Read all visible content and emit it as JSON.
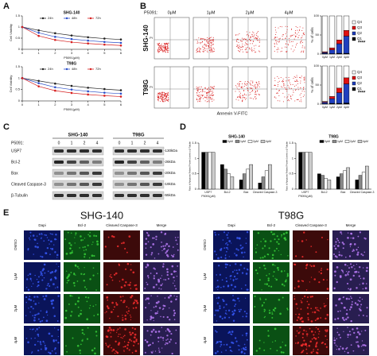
{
  "panel_labels": [
    "A",
    "B",
    "C",
    "D",
    "E"
  ],
  "chart_data": [
    {
      "type": "line",
      "title": "SHG-140",
      "x_label": "P5091(μM)",
      "y_label": "Cell Viability",
      "x": [
        0,
        1,
        2,
        3,
        4,
        5,
        6
      ],
      "xlim": [
        0,
        6
      ],
      "xticks": [
        0,
        1,
        2,
        3,
        4,
        5,
        6
      ],
      "ylim": [
        0,
        1.5
      ],
      "yticks": [
        0,
        0.5,
        1,
        1.5
      ],
      "series": [
        {
          "name": "24h",
          "color": "#222222",
          "values": [
            1,
            0.85,
            0.72,
            0.62,
            0.54,
            0.48,
            0.44
          ]
        },
        {
          "name": "48h",
          "color": "#2b4fc9",
          "values": [
            1,
            0.74,
            0.56,
            0.46,
            0.39,
            0.33,
            0.29
          ]
        },
        {
          "name": "72h",
          "color": "#d62020",
          "values": [
            1,
            0.6,
            0.42,
            0.32,
            0.26,
            0.21,
            0.17
          ]
        }
      ]
    },
    {
      "type": "line",
      "title": "T98G",
      "x_label": "P5091(μM)",
      "y_label": "Cell Viability",
      "x": [
        0,
        1,
        2,
        3,
        4,
        5,
        6
      ],
      "xlim": [
        0,
        6
      ],
      "xticks": [
        0,
        1,
        2,
        3,
        4,
        5,
        6
      ],
      "ylim": [
        0,
        1.5
      ],
      "yticks": [
        0,
        0.5,
        1,
        1.5
      ],
      "series": [
        {
          "name": "24h",
          "color": "#222222",
          "values": [
            1,
            0.88,
            0.76,
            0.66,
            0.58,
            0.52,
            0.47
          ]
        },
        {
          "name": "48h",
          "color": "#2b4fc9",
          "values": [
            1,
            0.78,
            0.6,
            0.5,
            0.42,
            0.36,
            0.32
          ]
        },
        {
          "name": "72h",
          "color": "#d62020",
          "values": [
            1,
            0.64,
            0.45,
            0.35,
            0.28,
            0.23,
            0.19
          ]
        }
      ]
    },
    {
      "type": "stacked_bar",
      "y_label": "% of cells",
      "annotation": "****",
      "categories": [
        "0μM",
        "1μM",
        "2μM",
        "4μM"
      ],
      "ylim": [
        0,
        100
      ],
      "yticks": [
        0,
        50,
        100
      ],
      "series": [
        {
          "name": "Q1",
          "color": "#000000",
          "values": [
            1,
            1,
            2,
            2
          ]
        },
        {
          "name": "Q2",
          "color": "#1f3fbf",
          "values": [
            3,
            10,
            25,
            45
          ]
        },
        {
          "name": "Q3",
          "color": "#e01010",
          "values": [
            2,
            5,
            10,
            15
          ]
        },
        {
          "name": "Q4",
          "color": "#ffffff",
          "values": [
            94,
            84,
            63,
            38
          ]
        }
      ]
    },
    {
      "type": "stacked_bar",
      "y_label": "% of cells",
      "annotation": "****",
      "categories": [
        "0μM",
        "1μM",
        "2μM",
        "4μM"
      ],
      "ylim": [
        0,
        100
      ],
      "yticks": [
        0,
        50,
        100
      ],
      "series": [
        {
          "name": "Q1",
          "color": "#000000",
          "values": [
            1,
            2,
            2,
            3
          ]
        },
        {
          "name": "Q2",
          "color": "#1f3fbf",
          "values": [
            4,
            12,
            28,
            50
          ]
        },
        {
          "name": "Q3",
          "color": "#e01010",
          "values": [
            2,
            6,
            12,
            16
          ]
        },
        {
          "name": "Q4",
          "color": "#ffffff",
          "values": [
            93,
            80,
            58,
            31
          ]
        }
      ]
    },
    {
      "type": "grouped_bar",
      "title": "SHG-140",
      "x_label": "P5091(μM)",
      "y_label": "Ratio of Apoptosis Related Protein Levels to β-Tubulin",
      "categories": [
        "USP7",
        "Bcl-2",
        "Bax",
        "Cleaved Caspase-3"
      ],
      "ylim": [
        0,
        1.5
      ],
      "yticks": [
        0,
        0.5,
        1,
        1.5
      ],
      "series": [
        {
          "name": "0μM",
          "color": "#000000",
          "values": [
            1.2,
            0.8,
            0.3,
            0.2
          ]
        },
        {
          "name": "1μM",
          "color": "#888888",
          "values": [
            1.2,
            0.65,
            0.5,
            0.4
          ]
        },
        {
          "name": "2μM",
          "color": "#ffffff",
          "values": [
            1.2,
            0.5,
            0.65,
            0.6
          ]
        },
        {
          "name": "4μM",
          "color": "#cccccc",
          "values": [
            1.2,
            0.4,
            0.8,
            0.8
          ]
        }
      ]
    },
    {
      "type": "grouped_bar",
      "title": "T98G",
      "x_label": "P5091(μM)",
      "y_label": "Ratio of Apoptosis Related Protein Levels to β-Tubulin",
      "categories": [
        "USP7",
        "Bcl-2",
        "Bax",
        "Cleaved Caspase-3"
      ],
      "ylim": [
        0,
        1.5
      ],
      "yticks": [
        0,
        0.5,
        1,
        1.5
      ],
      "series": [
        {
          "name": "0μM",
          "color": "#000000",
          "values": [
            1.2,
            0.5,
            0.4,
            0.3
          ]
        },
        {
          "name": "1μM",
          "color": "#888888",
          "values": [
            1.2,
            0.45,
            0.5,
            0.45
          ]
        },
        {
          "name": "2μM",
          "color": "#ffffff",
          "values": [
            1.2,
            0.35,
            0.6,
            0.55
          ]
        },
        {
          "name": "4μM",
          "color": "#cccccc",
          "values": [
            1.2,
            0.3,
            0.7,
            0.75
          ]
        }
      ]
    }
  ],
  "flow": {
    "treatment_label": "P5091:",
    "columns": [
      "0μM",
      "1μM",
      "2μM",
      "4μM"
    ],
    "rows": [
      "SHG-140",
      "T98G"
    ],
    "x_label": "Annexin V-FITC",
    "y_label": "PI"
  },
  "blot": {
    "treatment_label": "P5091:",
    "groups": [
      "SHG-140",
      "T98G"
    ],
    "lanes": [
      "0",
      "1",
      "2",
      "4"
    ],
    "proteins": [
      "USP7",
      "Bcl-2",
      "Bax",
      "Cleaved Caspase-3",
      "β-Tubulin"
    ],
    "sizes": [
      "-130kDa",
      "-26kDa",
      "-20kDa",
      "-19kDa",
      "-55kDa"
    ]
  },
  "micro": {
    "groups": [
      "SHG-140",
      "T98G"
    ],
    "columns": [
      "Dapi",
      "Bcl-2",
      "Cleaved Caspase-3",
      "Merge"
    ],
    "rows": [
      "DMSO",
      "1μM",
      "2μM",
      "4μM"
    ]
  }
}
